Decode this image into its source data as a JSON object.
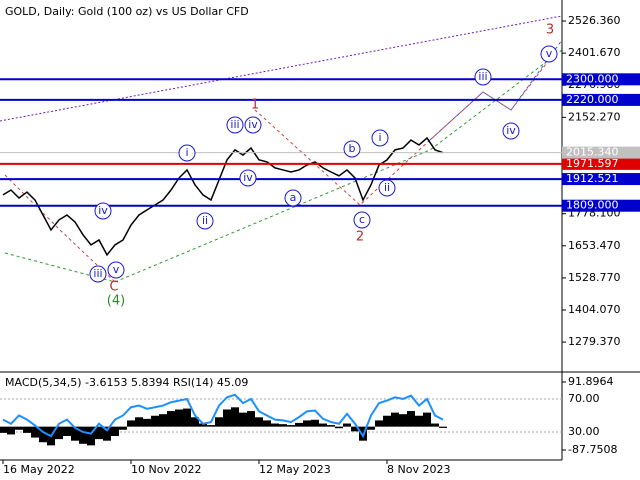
{
  "chart_data": {
    "type": "line",
    "title": "GOLD, Daily:  Gold (100 oz) vs US Dollar CFD",
    "color": "#000000",
    "xlim": [
      0,
      70
    ],
    "xticks": [
      {
        "value": 0,
        "label": "16 May 2022"
      },
      {
        "value": 16,
        "label": "10 Nov 2022"
      },
      {
        "value": 32,
        "label": "12 May 2023"
      },
      {
        "value": 48,
        "label": "8 Nov 2023"
      }
    ],
    "ylim": [
      1171,
      2608
    ],
    "yticks": [
      {
        "value": 2526.36,
        "label": "2526.360"
      },
      {
        "value": 2401.67,
        "label": "2401.670"
      },
      {
        "value": 2276.98,
        "label": "2276.980"
      },
      {
        "value": 2152.27,
        "label": "2152.270"
      },
      {
        "value": 1778.1,
        "label": "1778.100"
      },
      {
        "value": 1653.47,
        "label": "1653.470"
      },
      {
        "value": 1528.77,
        "label": "1528.770"
      },
      {
        "value": 1404.07,
        "label": "1404.070"
      },
      {
        "value": 1279.37,
        "label": "1279.370"
      }
    ],
    "values": [
      1851,
      1870,
      1839,
      1862,
      1831,
      1773,
      1715,
      1754,
      1773,
      1746,
      1696,
      1657,
      1676,
      1618,
      1657,
      1676,
      1734,
      1773,
      1793,
      1812,
      1831,
      1870,
      1917,
      1948,
      1890,
      1851,
      1831,
      1909,
      1987,
      2026,
      2006,
      2033,
      1987,
      1979,
      1956,
      1948,
      1940,
      1948,
      1967,
      1979,
      1956,
      1940,
      1925,
      1948,
      1917,
      1831,
      1890,
      1967,
      1987,
      2026,
      2033,
      2064,
      2045,
      2072,
      2026,
      2015
    ],
    "current_price": {
      "value": 2015.34,
      "label": "2015.340"
    },
    "levels": [
      {
        "value": 2300,
        "label": "2300.000",
        "color": "#0000cc"
      },
      {
        "value": 2220,
        "label": "2220.000",
        "color": "#0000cc"
      },
      {
        "value": 1971.597,
        "label": "1971.597",
        "color": "#e00000"
      },
      {
        "value": 1912.521,
        "label": "1912.521",
        "color": "#0000cc"
      },
      {
        "value": 1809,
        "label": "1809.000",
        "color": "#0000cc"
      }
    ],
    "wave_labels": [
      {
        "text": "iii",
        "color": "#1a1acc"
      },
      {
        "text": "iv",
        "color": "#1a1acc"
      },
      {
        "text": "1",
        "color": "#b03030"
      },
      {
        "text": "i",
        "color": "#1a1acc"
      },
      {
        "text": "iv",
        "color": "#1a1acc"
      },
      {
        "text": "iv",
        "color": "#1a1acc"
      },
      {
        "text": "a",
        "color": "#1a1acc"
      },
      {
        "text": "b",
        "color": "#1a1acc"
      },
      {
        "text": "i",
        "color": "#1a1acc"
      },
      {
        "text": "ii",
        "color": "#1a1acc"
      },
      {
        "text": "c",
        "color": "#1a1acc"
      },
      {
        "text": "2",
        "color": "#b03030"
      },
      {
        "text": "ii",
        "color": "#1a1acc"
      },
      {
        "text": "iii",
        "color": "#1a1acc"
      },
      {
        "text": "v",
        "color": "#1a1acc"
      },
      {
        "text": "C",
        "color": "#b03030"
      },
      {
        "text": "(4)",
        "color": "#2a8a2a"
      },
      {
        "text": "iii",
        "color": "#1a1acc"
      },
      {
        "text": "iv",
        "color": "#1a1acc"
      },
      {
        "text": "v",
        "color": "#1a1acc"
      },
      {
        "text": "3",
        "color": "#b03030"
      }
    ],
    "indicator_title": "MACD(5,34,5) -3.6153 5.8394 RSI(14) 45.09",
    "macd": {
      "color": "#000000",
      "ylim": [
        -87.7508,
        91.8964
      ],
      "yticks": [
        {
          "value": 91.8964,
          "label": "91.8964"
        },
        {
          "value": -87.7508,
          "label": "-87.7508"
        }
      ],
      "values": [
        -20,
        -25,
        -10,
        -20,
        -35,
        -50,
        -60,
        -40,
        -30,
        -45,
        -55,
        -60,
        -40,
        -45,
        -30,
        -10,
        20,
        30,
        25,
        35,
        40,
        50,
        55,
        58,
        30,
        10,
        5,
        30,
        55,
        62,
        45,
        50,
        30,
        20,
        10,
        8,
        5,
        12,
        20,
        22,
        10,
        5,
        -5,
        10,
        -15,
        -45,
        -10,
        20,
        35,
        45,
        40,
        50,
        35,
        45,
        10,
        -4
      ]
    },
    "rsi": {
      "color": "#1e90ff",
      "ylim": [
        -1.5,
        99
      ],
      "yticks": [
        {
          "value": 70,
          "label": "70.00"
        },
        {
          "value": 30,
          "label": "30.00"
        }
      ],
      "values": [
        45,
        40,
        50,
        45,
        38,
        30,
        25,
        40,
        45,
        35,
        30,
        28,
        40,
        32,
        45,
        50,
        60,
        62,
        58,
        60,
        62,
        66,
        68,
        70,
        50,
        40,
        42,
        62,
        72,
        75,
        65,
        70,
        55,
        50,
        45,
        44,
        42,
        48,
        55,
        56,
        46,
        42,
        40,
        52,
        40,
        25,
        50,
        65,
        68,
        72,
        70,
        74,
        62,
        70,
        50,
        45
      ]
    }
  }
}
